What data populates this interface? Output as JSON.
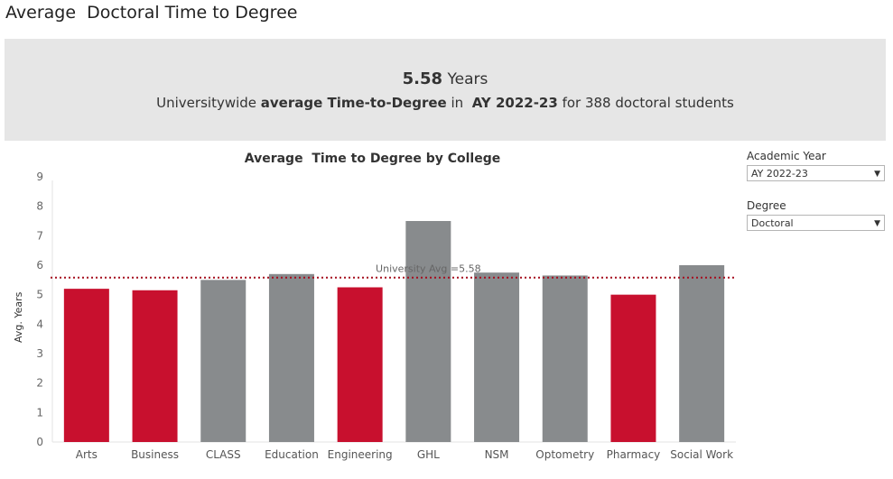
{
  "page_title": "Average  Doctoral Time to Degree",
  "summary": {
    "value": "5.58",
    "unit": " Years",
    "text_a": "Universitywide ",
    "text_b": "average Time-to-Degree",
    "text_c": " in  ",
    "text_d": "AY 2022-23",
    "text_e": " for 388 doctoral students"
  },
  "filters": {
    "academic_year": {
      "label": "Academic Year",
      "value": "AY 2022-23",
      "icon": "chevron-down-icon"
    },
    "degree": {
      "label": "Degree",
      "value": "Doctoral",
      "icon": "chevron-down-icon"
    }
  },
  "colors": {
    "highlight": "#c8102e",
    "gray": "#888b8d",
    "refline": "#a50d1e"
  },
  "chart_data": {
    "type": "bar",
    "title": "Average  Time to Degree by College",
    "xlabel": "",
    "ylabel": "Avg. Years",
    "ylim": [
      0,
      9
    ],
    "y_ticks": [
      "0",
      "1",
      "2",
      "3",
      "4",
      "5",
      "6",
      "7",
      "8",
      "9"
    ],
    "categories": [
      "Arts",
      "Business",
      "CLASS",
      "Education",
      "Engineering",
      "GHL",
      "NSM",
      "Optometry",
      "Pharmacy",
      "Social Work"
    ],
    "values": [
      5.2,
      5.15,
      5.5,
      5.7,
      5.25,
      7.5,
      5.75,
      5.65,
      5.0,
      6.0
    ],
    "highlighted": [
      true,
      true,
      false,
      false,
      true,
      false,
      false,
      false,
      true,
      false
    ],
    "reference_line": {
      "value": 5.58,
      "label": "University Avg =5.58"
    },
    "grid": false
  }
}
